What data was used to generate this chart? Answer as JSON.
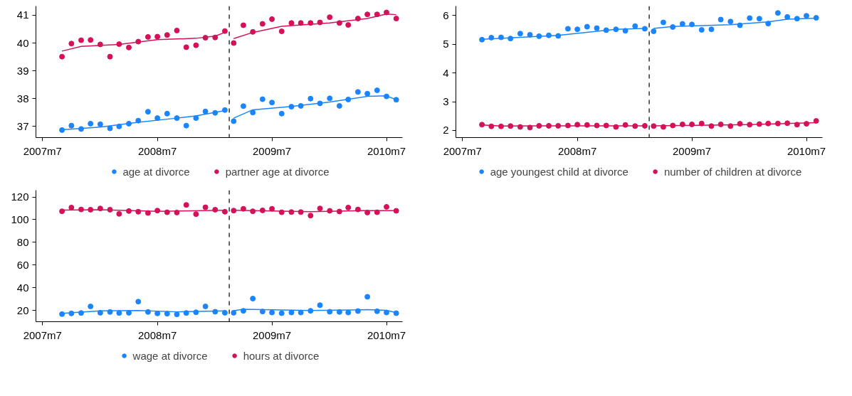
{
  "chart_data": [
    {
      "type": "scatter",
      "legend": "bottom",
      "x": [
        "2007-09",
        "2007-10",
        "2007-11",
        "2007-12",
        "2008-01",
        "2008-02",
        "2008-03",
        "2008-04",
        "2008-05",
        "2008-06",
        "2008-07",
        "2008-08",
        "2008-09",
        "2008-10",
        "2008-11",
        "2008-12",
        "2009-01",
        "2009-02",
        "2009-03",
        "2009-04",
        "2009-05",
        "2009-06",
        "2009-07",
        "2009-08",
        "2009-09",
        "2009-10",
        "2009-11",
        "2009-12",
        "2010-01",
        "2010-02",
        "2010-03",
        "2010-04",
        "2010-05",
        "2010-06",
        "2010-07",
        "2010-08"
      ],
      "xlim": [
        "2007-06-10",
        "2010-08-21"
      ],
      "xticks": [
        {
          "value": "2007-07",
          "label": "2007m7"
        },
        {
          "value": "2008-07",
          "label": "2008m7"
        },
        {
          "value": "2009-07",
          "label": "2009m7"
        },
        {
          "value": "2010-07",
          "label": "2010m7"
        }
      ],
      "ylim": [
        36.6,
        41.33
      ],
      "yticks": [
        37,
        38,
        39,
        40,
        41
      ],
      "ref_lines": [
        {
          "axis": "x",
          "value": "2009-02-15",
          "line_style": "dashed",
          "color": "#333333"
        }
      ],
      "series": [
        {
          "name": "age at divorce",
          "marker": "circle",
          "color": "#1a85ff",
          "values": [
            36.87,
            37.03,
            36.91,
            37.1,
            37.08,
            36.93,
            37.0,
            37.1,
            37.21,
            37.53,
            37.3,
            37.46,
            37.3,
            37.03,
            37.3,
            37.54,
            37.49,
            37.59,
            37.19,
            37.73,
            37.5,
            37.98,
            37.86,
            37.46,
            37.71,
            37.74,
            38.0,
            37.83,
            38.01,
            37.74,
            37.97,
            38.24,
            38.18,
            38.3,
            38.08,
            37.96
          ]
        },
        {
          "name": "partner age at divorce",
          "marker": "circle",
          "color": "#d41159",
          "values": [
            39.51,
            39.98,
            40.1,
            40.11,
            39.95,
            39.51,
            39.96,
            39.84,
            40.05,
            40.22,
            40.23,
            40.29,
            40.45,
            39.85,
            39.92,
            40.19,
            40.2,
            40.43,
            40.0,
            40.64,
            40.4,
            40.69,
            40.86,
            40.42,
            40.72,
            40.72,
            40.72,
            40.74,
            40.93,
            40.72,
            40.65,
            40.88,
            41.03,
            41.03,
            41.1,
            40.88
          ]
        },
        {
          "type": "line",
          "color": "#1a85ff",
          "x": [
            "2007-09",
            "2008-01",
            "2008-05",
            "2008-09",
            "2008-11",
            "2009-02"
          ],
          "values": [
            36.88,
            36.98,
            37.15,
            37.3,
            37.38,
            37.57
          ]
        },
        {
          "type": "line",
          "color": "#1a85ff",
          "x": [
            "2009-03",
            "2009-05",
            "2009-09",
            "2010-01",
            "2010-05",
            "2010-07",
            "2010-08"
          ],
          "values": [
            37.3,
            37.6,
            37.72,
            37.88,
            38.08,
            38.1,
            37.96
          ]
        },
        {
          "type": "line",
          "color": "#d41159",
          "x": [
            "2007-09",
            "2007-11",
            "2008-03",
            "2008-07",
            "2008-11",
            "2009-01",
            "2009-02"
          ],
          "values": [
            39.71,
            39.88,
            39.95,
            40.12,
            40.17,
            40.25,
            40.38
          ]
        },
        {
          "type": "line",
          "color": "#d41159",
          "x": [
            "2009-03",
            "2009-05",
            "2009-08",
            "2010-01",
            "2010-05",
            "2010-07",
            "2010-08"
          ],
          "values": [
            40.16,
            40.38,
            40.6,
            40.72,
            40.88,
            41.04,
            41.02
          ]
        }
      ]
    },
    {
      "type": "scatter",
      "legend": "bottom",
      "x": [
        "2007-09",
        "2007-10",
        "2007-11",
        "2007-12",
        "2008-01",
        "2008-02",
        "2008-03",
        "2008-04",
        "2008-05",
        "2008-06",
        "2008-07",
        "2008-08",
        "2008-09",
        "2008-10",
        "2008-11",
        "2008-12",
        "2009-01",
        "2009-02",
        "2009-03",
        "2009-04",
        "2009-05",
        "2009-06",
        "2009-07",
        "2009-08",
        "2009-09",
        "2009-10",
        "2009-11",
        "2009-12",
        "2010-01",
        "2010-02",
        "2010-03",
        "2010-04",
        "2010-05",
        "2010-06",
        "2010-07",
        "2010-08"
      ],
      "xlim": [
        "2007-06-10",
        "2010-08-21"
      ],
      "xticks": [
        {
          "value": "2007-07",
          "label": "2007m7"
        },
        {
          "value": "2008-07",
          "label": "2008m7"
        },
        {
          "value": "2009-07",
          "label": "2009m7"
        },
        {
          "value": "2010-07",
          "label": "2010m7"
        }
      ],
      "ylim": [
        1.75,
        6.33
      ],
      "yticks": [
        2,
        3,
        4,
        5,
        6
      ],
      "ref_lines": [
        {
          "axis": "x",
          "value": "2009-02-15",
          "line_style": "dashed",
          "color": "#333333"
        }
      ],
      "series": [
        {
          "name": "age youngest child at divorce",
          "marker": "circle",
          "color": "#1a85ff",
          "values": [
            5.16,
            5.23,
            5.24,
            5.2,
            5.37,
            5.33,
            5.28,
            5.31,
            5.29,
            5.54,
            5.52,
            5.61,
            5.56,
            5.49,
            5.52,
            5.47,
            5.63,
            5.54,
            5.45,
            5.76,
            5.6,
            5.71,
            5.69,
            5.5,
            5.52,
            5.86,
            5.79,
            5.66,
            5.91,
            5.89,
            5.72,
            6.09,
            5.95,
            5.89,
            5.99,
            5.92
          ]
        },
        {
          "name": "number of children at divorce",
          "marker": "circle",
          "color": "#d41159",
          "values": [
            2.2,
            2.14,
            2.14,
            2.15,
            2.12,
            2.1,
            2.16,
            2.16,
            2.16,
            2.17,
            2.2,
            2.19,
            2.17,
            2.17,
            2.12,
            2.19,
            2.15,
            2.16,
            2.15,
            2.12,
            2.17,
            2.21,
            2.21,
            2.24,
            2.15,
            2.21,
            2.15,
            2.23,
            2.2,
            2.22,
            2.24,
            2.24,
            2.25,
            2.2,
            2.23,
            2.33
          ]
        },
        {
          "type": "line",
          "color": "#1a85ff",
          "x": [
            "2007-09",
            "2008-01",
            "2008-05",
            "2008-09",
            "2008-11",
            "2009-02"
          ],
          "values": [
            5.17,
            5.24,
            5.31,
            5.45,
            5.52,
            5.55
          ]
        },
        {
          "type": "line",
          "color": "#1a85ff",
          "x": [
            "2009-03",
            "2009-05",
            "2009-11",
            "2010-03",
            "2010-05",
            "2010-08"
          ],
          "values": [
            5.55,
            5.62,
            5.68,
            5.78,
            5.87,
            5.91
          ]
        },
        {
          "type": "line",
          "color": "#d41159",
          "x": [
            "2007-09",
            "2007-11",
            "2008-05",
            "2009-02"
          ],
          "values": [
            2.19,
            2.15,
            2.16,
            2.16
          ]
        },
        {
          "type": "line",
          "color": "#d41159",
          "x": [
            "2009-03",
            "2010-01",
            "2010-08"
          ],
          "values": [
            2.16,
            2.2,
            2.27
          ]
        }
      ]
    },
    {
      "type": "scatter",
      "legend": "bottom",
      "x": [
        "2007-09",
        "2007-10",
        "2007-11",
        "2007-12",
        "2008-01",
        "2008-02",
        "2008-03",
        "2008-04",
        "2008-05",
        "2008-06",
        "2008-07",
        "2008-08",
        "2008-09",
        "2008-10",
        "2008-11",
        "2008-12",
        "2009-01",
        "2009-02",
        "2009-03",
        "2009-04",
        "2009-05",
        "2009-06",
        "2009-07",
        "2009-08",
        "2009-09",
        "2009-10",
        "2009-11",
        "2009-12",
        "2010-01",
        "2010-02",
        "2010-03",
        "2010-04",
        "2010-05",
        "2010-06",
        "2010-07",
        "2010-08"
      ],
      "xlim": [
        "2007-06-10",
        "2010-08-21"
      ],
      "xticks": [
        {
          "value": "2007-07",
          "label": "2007m7"
        },
        {
          "value": "2008-07",
          "label": "2008m7"
        },
        {
          "value": "2009-07",
          "label": "2009m7"
        },
        {
          "value": "2010-07",
          "label": "2010m7"
        }
      ],
      "ylim": [
        10,
        126
      ],
      "yticks": [
        20,
        40,
        60,
        80,
        100,
        120
      ],
      "ref_lines": [
        {
          "axis": "x",
          "value": "2009-02-15",
          "line_style": "dashed",
          "color": "#333333"
        }
      ],
      "series": [
        {
          "name": "wage at divorce",
          "marker": "circle",
          "color": "#1a85ff",
          "values": [
            16.7,
            17.3,
            17.7,
            23.5,
            17.9,
            18.6,
            17.7,
            17.9,
            27.7,
            18.6,
            17.3,
            17.1,
            16.5,
            17.7,
            18.3,
            23.5,
            18.8,
            17.9,
            17.9,
            19.6,
            30.4,
            19.0,
            18.1,
            17.5,
            18.1,
            18.1,
            19.6,
            24.6,
            18.8,
            18.6,
            18.1,
            19.4,
            32.0,
            19.2,
            18.1,
            17.5
          ]
        },
        {
          "name": "hours at divorce",
          "marker": "circle",
          "color": "#d41159",
          "values": [
            107.4,
            110.7,
            109.0,
            108.8,
            109.9,
            108.8,
            105.1,
            107.6,
            107.0,
            105.9,
            108.0,
            106.5,
            106.3,
            113.0,
            104.9,
            110.9,
            108.8,
            107.0,
            108.0,
            109.6,
            107.4,
            108.2,
            109.6,
            106.5,
            106.7,
            106.7,
            103.6,
            109.9,
            107.8,
            107.2,
            110.7,
            109.0,
            106.3,
            106.5,
            111.3,
            107.8
          ]
        },
        {
          "type": "line",
          "color": "#1a85ff",
          "x": [
            "2007-09",
            "2008-01",
            "2008-05",
            "2008-09",
            "2009-02"
          ],
          "values": [
            17.3,
            19.5,
            19.8,
            18.7,
            19.5
          ]
        },
        {
          "type": "line",
          "color": "#1a85ff",
          "x": [
            "2009-03",
            "2009-04",
            "2009-11",
            "2010-05",
            "2010-07",
            "2010-08"
          ],
          "values": [
            19.7,
            21.0,
            19.8,
            20.6,
            20.0,
            18.0
          ]
        },
        {
          "type": "line",
          "color": "#d41159",
          "x": [
            "2007-09",
            "2008-01",
            "2008-07",
            "2009-02"
          ],
          "values": [
            108.5,
            108.8,
            107.3,
            108.3
          ]
        },
        {
          "type": "line",
          "color": "#d41159",
          "x": [
            "2009-03",
            "2009-11",
            "2010-05",
            "2010-08"
          ],
          "values": [
            108.3,
            107.0,
            108.0,
            108.0
          ]
        }
      ]
    }
  ]
}
